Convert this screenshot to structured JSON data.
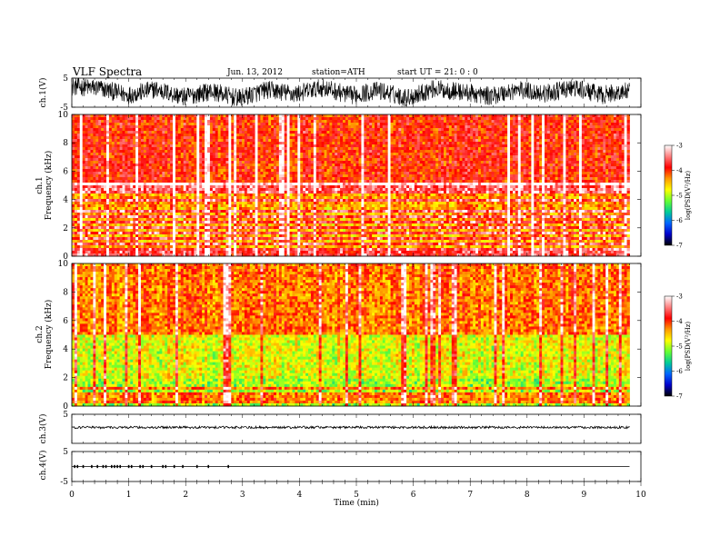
{
  "header": {
    "title": "VLF  Spectra",
    "date": "Jun. 13, 2012",
    "station": "station=ATH",
    "start": "start  UT  =   21: 0  : 0"
  },
  "colorbar": {
    "label": "log(PSD(V²/Hz)",
    "ticks": [
      "-3",
      "-4",
      "-5",
      "-6",
      "-7"
    ],
    "colors": [
      "#ffffff",
      "#ff8080",
      "#ff0000",
      "#ff9900",
      "#ffff00",
      "#66ff33",
      "#00cc99",
      "#0066ff",
      "#0000cc",
      "#000000"
    ]
  },
  "chart_data": [
    {
      "type": "line",
      "name": "ch1-waveform",
      "ylabel": "ch.1(V)",
      "ylim": [
        -5,
        5
      ],
      "yticks": [
        "5",
        "-5"
      ],
      "description_of_trace": "dense oscillating waveform with slow envelope",
      "envelope_center": [
        2.2,
        1.5,
        -0.8,
        1.2,
        -1.5,
        0.5,
        -2.0,
        1.0,
        -0.5,
        1.8,
        -1.0,
        0.8,
        -1.8,
        1.4,
        0.2,
        -1.2,
        1.0,
        -0.3,
        1.6,
        -0.8,
        0.6
      ],
      "amplitude": 3.2
    },
    {
      "type": "heatmap",
      "name": "ch1-spectrogram",
      "ylabel": "ch.1\nFrequency  (kHz)",
      "ylim": [
        0,
        10
      ],
      "yticks": [
        "0",
        "2",
        "4",
        "6",
        "8",
        "10"
      ],
      "zlim": [
        -7,
        -3
      ],
      "bands_khz": [
        0.2,
        0.5,
        0.8,
        1.2,
        1.6,
        2.0,
        2.4,
        2.8,
        3.2,
        4.0,
        4.6,
        5.0
      ]
    },
    {
      "type": "heatmap",
      "name": "ch2-spectrogram",
      "ylabel": "ch.2\nFrequency  (kHz)",
      "ylim": [
        0,
        10
      ],
      "yticks": [
        "0",
        "2",
        "4",
        "6",
        "8",
        "10"
      ],
      "zlim": [
        -7,
        -3
      ],
      "bands_khz": [
        0.3,
        0.6,
        0.9,
        1.2
      ]
    },
    {
      "type": "line",
      "name": "ch3-waveform",
      "ylabel": "ch.3(V)",
      "ylim": [
        -5,
        5
      ],
      "yticks": [
        "5"
      ],
      "level": 0.5
    },
    {
      "type": "line",
      "name": "ch4-waveform",
      "ylabel": "ch.4(V)",
      "ylim": [
        -5,
        5
      ],
      "yticks": [
        "5",
        "-5"
      ],
      "level": 0.0,
      "spike_times_min": [
        0.05,
        0.1,
        0.2,
        0.35,
        0.45,
        0.55,
        0.6,
        0.7,
        0.75,
        0.8,
        0.85,
        1.0,
        1.05,
        1.2,
        1.25,
        1.4,
        1.6,
        1.65,
        1.8,
        1.95,
        2.2,
        2.4,
        2.75
      ]
    }
  ],
  "xaxis": {
    "label": "Time  (min)",
    "ticks": [
      "0",
      "1",
      "2",
      "3",
      "4",
      "5",
      "6",
      "7",
      "8",
      "9",
      "10"
    ],
    "xlim": [
      0,
      10
    ],
    "data_end_min": 9.8
  }
}
